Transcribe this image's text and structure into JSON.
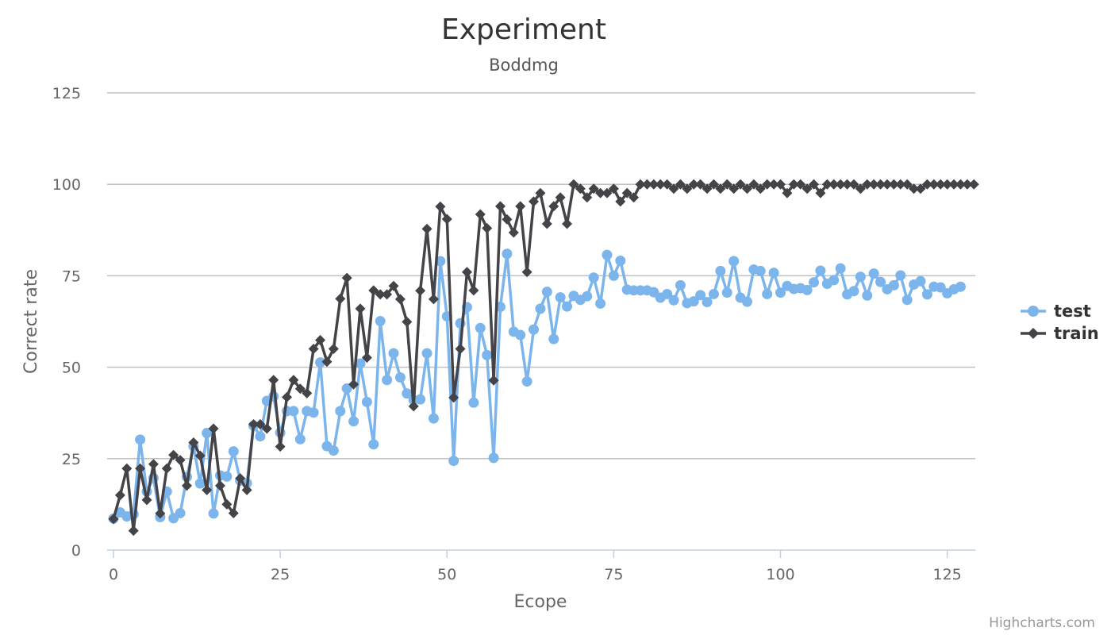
{
  "credits": "Highcharts.com",
  "chart_data": {
    "type": "line",
    "title": "Experiment",
    "subtitle": "Boddmg",
    "xlabel": "Ecope",
    "ylabel": "Correct rate",
    "xlim": [
      0,
      128
    ],
    "ylim": [
      0,
      125
    ],
    "x_ticks": [
      0,
      25,
      50,
      75,
      100,
      125
    ],
    "y_ticks": [
      0,
      25,
      50,
      75,
      100,
      125
    ],
    "grid": "horizontal",
    "legend_position": "right",
    "series": [
      {
        "name": "test",
        "color": "#7cb5ec",
        "marker": "circle",
        "values": [
          8.6,
          10.3,
          9.2,
          9.8,
          30.2,
          16,
          19.7,
          9,
          16,
          8.7,
          10.1,
          20,
          28.4,
          18.2,
          32,
          10,
          20.4,
          20.1,
          27,
          19,
          18.3,
          34,
          31.1,
          40.8,
          42,
          32.1,
          38,
          38,
          30.3,
          38,
          37.6,
          51.3,
          28.4,
          27.2,
          38,
          44.2,
          35.2,
          51,
          40.5,
          28.9,
          62.6,
          46.5,
          53.8,
          47.2,
          42.8,
          41,
          41.2,
          53.8,
          36,
          79,
          63.9,
          24.4,
          62,
          66.4,
          40.3,
          60.7,
          53.3,
          25.2,
          66.5,
          81,
          59.7,
          58.8,
          46.1,
          60.3,
          66,
          70.6,
          57.7,
          69.1,
          66.6,
          69.5,
          68.4,
          69.4,
          74.5,
          67.4,
          80.7,
          75,
          79.1,
          71.2,
          71,
          71,
          71,
          70.5,
          69,
          70,
          68.3,
          72.4,
          67.5,
          68,
          69.7,
          67.8,
          70,
          76.3,
          70.4,
          79,
          69,
          67.9,
          76.7,
          76.3,
          70,
          75.8,
          70.4,
          72.2,
          71.4,
          71.6,
          71.1,
          73.2,
          76.4,
          72.8,
          73.8,
          77,
          69.9,
          70.8,
          74.7,
          69.6,
          75.6,
          73.3,
          71.3,
          72.4,
          75.1,
          68.4,
          72.6,
          73.5,
          69.9,
          72,
          71.8,
          70.2,
          71.3,
          72
        ]
      },
      {
        "name": "train",
        "color": "#434348",
        "marker": "diamond",
        "values": [
          8.5,
          15,
          22.3,
          5.3,
          22.3,
          13.7,
          23.5,
          10,
          22.3,
          26,
          24.6,
          17.6,
          29.4,
          25.8,
          16.4,
          33.2,
          17.6,
          12.5,
          10.1,
          19.6,
          16.4,
          34.4,
          34.4,
          33.2,
          46.5,
          28.3,
          41.8,
          46.5,
          44.1,
          42.9,
          55,
          57.4,
          51.5,
          55,
          68.7,
          74.4,
          45.3,
          66,
          52.6,
          71,
          69.9,
          69.9,
          72.2,
          68.6,
          62.4,
          39.3,
          70.9,
          87.8,
          68.6,
          93.9,
          90.5,
          41.7,
          55,
          76,
          71,
          91.8,
          88,
          46.4,
          94,
          90.4,
          86.8,
          94,
          76,
          95.3,
          97.6,
          89.2,
          94,
          96.4,
          89.2,
          100,
          98.8,
          96.4,
          98.8,
          97.6,
          97.6,
          98.8,
          95.3,
          97.6,
          96.4,
          100,
          100,
          100,
          100,
          100,
          98.8,
          100,
          98.8,
          100,
          100,
          98.8,
          100,
          98.8,
          100,
          98.8,
          100,
          98.8,
          100,
          98.8,
          100,
          100,
          100,
          97.6,
          100,
          100,
          98.8,
          100,
          97.6,
          100,
          100,
          100,
          100,
          100,
          98.8,
          100,
          100,
          100,
          100,
          100,
          100,
          100,
          98.8,
          98.8,
          100,
          100,
          100,
          100,
          100,
          100,
          100,
          100
        ]
      }
    ]
  }
}
